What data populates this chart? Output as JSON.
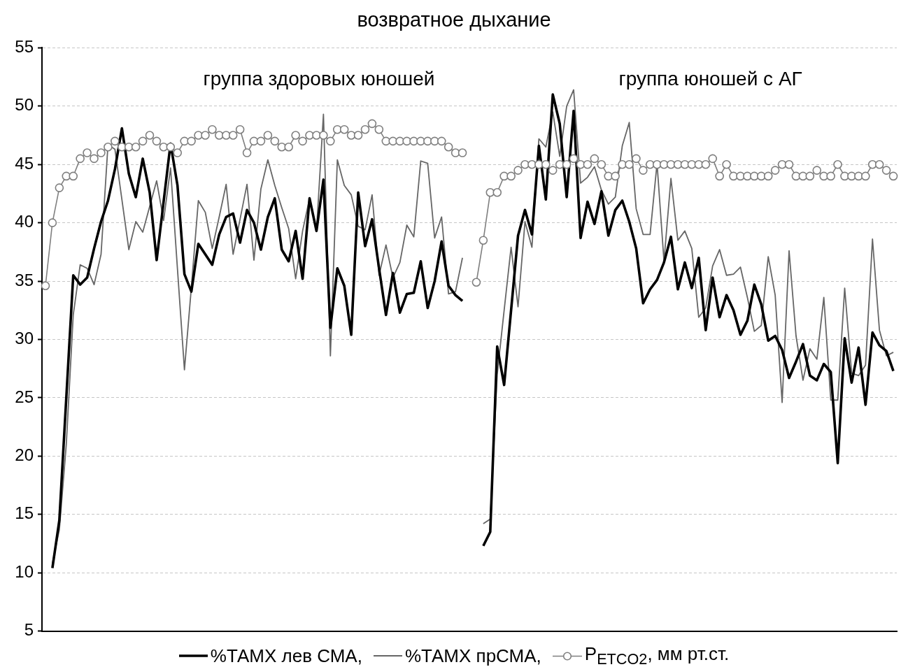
{
  "chart_data": {
    "type": "line",
    "title": "возвратное дыхание",
    "categories": [
      null,
      null,
      null,
      null,
      null,
      null,
      null,
      null,
      null,
      null,
      null,
      null,
      null,
      null,
      null,
      null,
      null,
      null,
      null,
      null,
      null,
      null,
      null,
      null,
      null,
      null,
      null,
      null,
      null,
      null,
      null,
      null,
      null,
      null,
      null,
      null,
      null,
      null,
      null,
      null,
      null,
      null,
      null,
      null,
      null,
      null,
      null,
      null,
      null,
      null,
      null,
      null,
      null,
      null,
      null,
      null,
      null,
      null,
      null,
      null,
      null,
      null,
      null,
      null,
      null,
      null,
      null,
      null,
      null,
      null,
      null,
      null,
      null,
      null,
      null,
      null,
      null,
      null,
      null,
      null,
      null,
      null,
      null,
      null,
      null,
      null,
      null,
      null,
      null,
      null,
      null,
      null,
      null,
      null,
      null,
      null,
      null,
      null,
      null,
      null,
      null,
      null,
      null,
      null,
      null,
      null,
      null,
      null,
      null,
      null,
      null,
      null,
      null,
      null,
      null,
      null,
      null,
      null,
      null,
      null,
      null,
      null,
      null
    ],
    "series": [
      {
        "name": "%ТАМХ лев СМА,",
        "color": "#000000",
        "values": [
          null,
          10.4,
          14.5,
          25,
          35.5,
          34.7,
          35.3,
          37.8,
          40.1,
          41.9,
          44.6,
          48.1,
          44.2,
          42.2,
          45.5,
          42.6,
          36.8,
          41.8,
          46.8,
          43.2,
          35.6,
          34.1,
          38.2,
          37.3,
          36.4,
          39.0,
          40.5,
          40.8,
          38.3,
          41.1,
          40.0,
          37.7,
          40.5,
          42.1,
          37.7,
          36.7,
          39.3,
          35.2,
          42.1,
          39.3,
          43.7,
          31,
          36.1,
          34.6,
          30.4,
          42.6,
          38.0,
          40.3,
          36.1,
          32.1,
          35.7,
          32.3,
          33.9,
          34.0,
          36.7,
          32.7,
          35.0,
          38.4,
          34.6,
          33.8,
          33.3,
          null,
          null,
          12.3,
          13.5,
          29.4,
          26.1,
          32.5,
          38.9,
          41.1,
          39.0,
          46.6,
          42.0,
          51.0,
          48.5,
          42.2,
          49.6,
          38.7,
          41.8,
          39.9,
          42.7,
          38.9,
          41.1,
          41.9,
          40.1,
          37.8,
          33.1,
          34.3,
          35.1,
          36.6,
          38.8,
          34.3,
          36.6,
          34.4,
          37.0,
          30.8,
          35.3,
          31.9,
          33.8,
          32.5,
          30.4,
          31.6,
          34.7,
          33.0,
          29.9,
          30.3,
          29.1,
          26.7,
          28.1,
          29.6,
          26.9,
          26.5,
          27.9,
          27.2,
          19.4,
          30.1,
          26.3,
          29.3,
          24.4,
          30.6,
          29.5,
          29.0,
          27.3
        ]
      },
      {
        "name": "%ТАМХ прСМА,",
        "color": "#666666",
        "values": [
          null,
          10.8,
          13.7,
          21,
          32.1,
          36.4,
          36.1,
          34.7,
          37.3,
          46.7,
          46.3,
          42.0,
          37.7,
          40.1,
          39.2,
          41.4,
          43.6,
          40.2,
          44.7,
          36,
          27.4,
          34.5,
          41.9,
          40.9,
          37.8,
          40.5,
          43.3,
          37.3,
          40.3,
          43.3,
          36.8,
          42.9,
          45.4,
          43.2,
          41.3,
          39.5,
          35.2,
          39.3,
          42.1,
          39.3,
          49.3,
          28.6,
          45.4,
          43.2,
          42.4,
          39.7,
          39.4,
          42.4,
          35.5,
          38.1,
          35.3,
          36.6,
          39.8,
          38.8,
          45.3,
          45.1,
          38.7,
          40.5,
          33.9,
          34.1,
          37.0,
          null,
          null,
          14.2,
          14.6,
          27,
          32.5,
          37.9,
          32.8,
          40.1,
          37.9,
          47.2,
          46.5,
          49.5,
          45.7,
          50.0,
          51.4,
          43.4,
          43.9,
          44.8,
          42.8,
          41.6,
          42.2,
          46.6,
          48.6,
          41.2,
          39.0,
          39.0,
          45.1,
          36.7,
          43.8,
          38.5,
          39.3,
          37.8,
          31.9,
          32.7,
          36.3,
          37.7,
          35.5,
          35.6,
          36.2,
          33.6,
          30.7,
          31.2,
          37.1,
          33.8,
          24.6,
          37.6,
          30.3,
          26.5,
          29.2,
          28.3,
          33.6,
          24.8,
          24.8,
          34.4,
          27.1,
          26.9,
          27.8,
          38.6,
          30.8,
          28.6,
          28.9
        ]
      },
      {
        "name": "P$_{ETCO2}$, мм рт.ст.",
        "color": "#7f7f7f",
        "marker": "circle",
        "values": [
          34.6,
          40,
          43,
          44,
          44,
          45.5,
          46,
          45.5,
          46,
          46.5,
          47,
          46.5,
          46.5,
          46.5,
          47,
          47.5,
          47,
          46.5,
          46.5,
          46,
          47,
          47,
          47.5,
          47.5,
          48,
          47.5,
          47.5,
          47.5,
          48,
          46,
          47,
          47,
          47.5,
          47,
          46.5,
          46.5,
          47.5,
          47,
          47.5,
          47.5,
          47.5,
          47,
          48,
          48,
          47.5,
          47.5,
          48,
          48.5,
          48,
          47,
          47,
          47,
          47,
          47,
          47,
          47,
          47,
          47,
          46.5,
          46,
          46,
          null,
          34.9,
          38.5,
          42.6,
          42.6,
          44,
          44,
          44.5,
          45,
          45,
          45,
          45,
          44.5,
          45,
          45,
          45.5,
          45,
          45,
          45.5,
          45,
          44,
          44,
          45,
          45,
          45.5,
          44.5,
          45,
          45,
          45,
          45,
          45,
          45,
          45,
          45,
          45,
          45.5,
          44,
          45,
          44,
          44,
          44,
          44,
          44,
          44,
          44.5,
          45,
          45,
          44,
          44,
          44,
          44.5,
          44,
          44,
          45,
          44,
          44,
          44,
          44,
          45,
          45,
          44.5,
          44
        ]
      }
    ],
    "ylim": [
      5,
      55
    ],
    "yticks": [
      5,
      10,
      15,
      20,
      25,
      30,
      35,
      40,
      45,
      50,
      55
    ],
    "grid": "y",
    "legend": "bottom",
    "annotations": [
      "группа здоровых юношей",
      "группа юношей с АГ"
    ]
  }
}
